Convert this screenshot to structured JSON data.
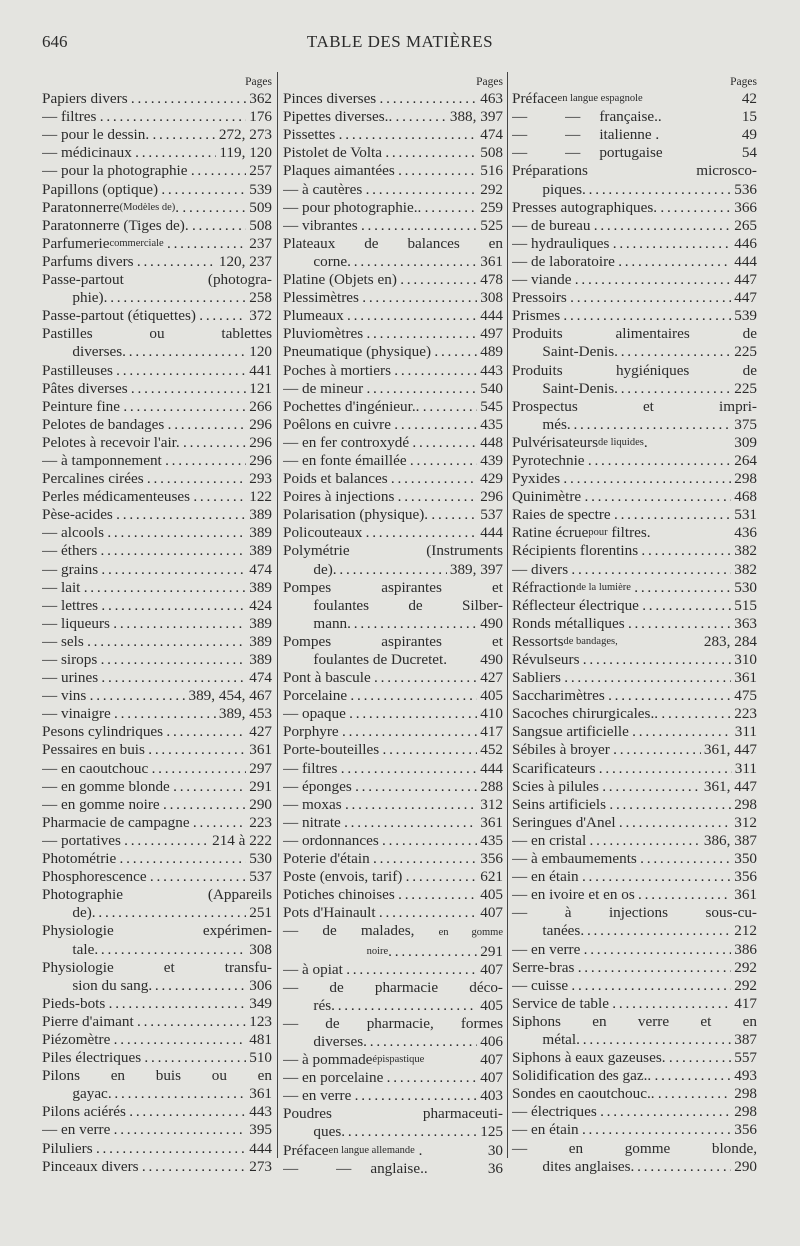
{
  "header": {
    "page_number": "646",
    "title": "TABLE DES MATIÈRES"
  },
  "pages_label": "Pages",
  "columns": [
    [
      {
        "t": "Papiers divers",
        "p": "362"
      },
      {
        "t": "— filtres",
        "p": "176"
      },
      {
        "t": "— pour le dessin.",
        "p": "272, 273"
      },
      {
        "t": "— médicinaux",
        "p": "119, 120"
      },
      {
        "t": "— pour la photographie",
        "p": "257"
      },
      {
        "t": "Papillons (optique)",
        "p": "539"
      },
      {
        "t": "Paratonnerre",
        "s": "(Modèles de)",
        "t2": ".",
        "p": "509"
      },
      {
        "t": "Paratonnerre (Tiges de).",
        "p": "508"
      },
      {
        "t": "Parfumerie",
        "s": "commerciale",
        "p": "237"
      },
      {
        "t": "Parfums divers",
        "p": "120, 237"
      },
      {
        "t": "Passe-partout (photogra-",
        "c": "phie)",
        "p": "258"
      },
      {
        "t": "Passe-partout (étiquettes)",
        "p": "372"
      },
      {
        "t": "Pastilles ou tablettes",
        "c": "diverses",
        "p": "120"
      },
      {
        "t": "Pastilleuses",
        "p": "441"
      },
      {
        "t": "Pâtes diverses",
        "p": "121"
      },
      {
        "t": "Peinture fine",
        "p": "266"
      },
      {
        "t": "Pelotes de bandages",
        "p": "296"
      },
      {
        "t": "Pelotes à recevoir l'air.",
        "p": "296"
      },
      {
        "t": "— à tamponnement",
        "p": "296"
      },
      {
        "t": "Percalines cirées",
        "p": "293"
      },
      {
        "t": "Perles médicamenteuses",
        "p": "122"
      },
      {
        "t": "Pèse-acides",
        "p": "389"
      },
      {
        "t": "— alcools",
        "p": "389"
      },
      {
        "t": "— éthers",
        "p": "389"
      },
      {
        "t": "— grains",
        "p": "474"
      },
      {
        "t": "— lait",
        "p": "389"
      },
      {
        "t": "— lettres",
        "p": "424"
      },
      {
        "t": "— liqueurs",
        "p": "389"
      },
      {
        "t": "— sels",
        "p": "389"
      },
      {
        "t": "— sirops",
        "p": "389"
      },
      {
        "t": "— urines",
        "p": "474"
      },
      {
        "t": "— vins",
        "p": "389, 454, 467"
      },
      {
        "t": "— vinaigre",
        "p": "389, 453"
      },
      {
        "t": "Pesons cylindriques",
        "p": "427"
      },
      {
        "t": "Pessaires en buis",
        "p": "361"
      },
      {
        "t": "— en caoutchouc",
        "p": "297"
      },
      {
        "t": "— en gomme blonde",
        "p": "291"
      },
      {
        "t": "— en gomme noire",
        "p": "290"
      },
      {
        "t": "Pharmacie de campagne",
        "p": "223"
      },
      {
        "t": "— portatives",
        "p": "214 à 222"
      },
      {
        "t": "Photométrie",
        "p": "530"
      },
      {
        "t": "Phosphorescence",
        "p": "537"
      },
      {
        "t": "Photographie (Appareils",
        "c": "de)",
        "p": "251"
      },
      {
        "t": "Physiologie expérimen-",
        "c": "tale",
        "p": "308"
      },
      {
        "t": "Physiologie et transfu-",
        "c": "sion du sang",
        "p": "306"
      },
      {
        "t": "Pieds-bots",
        "p": "349"
      },
      {
        "t": "Pierre d'aimant",
        "p": "123"
      },
      {
        "t": "Piézomètre",
        "p": "481"
      },
      {
        "t": "Piles électriques",
        "p": "510"
      },
      {
        "t": "Pilons en buis ou en",
        "c": "gayac",
        "p": "361"
      },
      {
        "t": "Pilons aciérés",
        "p": "443"
      },
      {
        "t": "— en verre",
        "p": "395"
      },
      {
        "t": "Piluliers",
        "p": "444"
      },
      {
        "t": "Pinceaux divers",
        "p": "273"
      }
    ],
    [
      {
        "t": "Pinces diverses",
        "p": "463"
      },
      {
        "t": "Pipettes diverses..",
        "p": "388, 397"
      },
      {
        "t": "Pissettes",
        "p": "474"
      },
      {
        "t": "Pistolet de Volta",
        "p": "508"
      },
      {
        "t": "Plaques aimantées",
        "p": "516"
      },
      {
        "t": "— à cautères",
        "p": "292"
      },
      {
        "t": "— pour photographie..",
        "p": "259"
      },
      {
        "t": "— vibrantes",
        "p": "525"
      },
      {
        "t": "Plateaux de balances en",
        "c": "corne",
        "p": "361"
      },
      {
        "t": "Platine (Objets en)",
        "p": "478"
      },
      {
        "t": "Plessimètres",
        "p": "308"
      },
      {
        "t": "Plumeaux",
        "p": "444"
      },
      {
        "t": "Pluviomètres",
        "p": "497"
      },
      {
        "t": "Pneumatique (physique)",
        "p": "489"
      },
      {
        "t": "Poches à mortiers",
        "p": "443"
      },
      {
        "t": "— de mineur",
        "p": "540"
      },
      {
        "t": "Pochettes d'ingénieur..",
        "p": "545"
      },
      {
        "t": "Poêlons en cuivre",
        "p": "435"
      },
      {
        "t": "— en fer controxydé",
        "p": "448"
      },
      {
        "t": "— en fonte émaillée",
        "p": "439"
      },
      {
        "t": "Poids et balances",
        "p": "429"
      },
      {
        "t": "Poires à injections",
        "p": "296"
      },
      {
        "t": "Polarisation (physique).",
        "p": "537"
      },
      {
        "t": "Policouteaux",
        "p": "444"
      },
      {
        "t": "Polymétrie (Instruments",
        "c": "de)",
        "p": "389, 397"
      },
      {
        "t": "Pompes aspirantes et",
        "m": "foulantes de Silber-",
        "c": "mann",
        "p": "490"
      },
      {
        "t": "Pompes aspirantes et",
        "c": "foulantes de Ducretet.",
        "p": "490",
        "nolead": true
      },
      {
        "t": "Pont à bascule",
        "p": "427"
      },
      {
        "t": "Porcelaine",
        "p": "405"
      },
      {
        "t": "— opaque",
        "p": "410"
      },
      {
        "t": "Porphyre",
        "p": "417"
      },
      {
        "t": "Porte-bouteilles",
        "p": "452"
      },
      {
        "t": "— filtres",
        "p": "444"
      },
      {
        "t": "— éponges",
        "p": "288"
      },
      {
        "t": "— moxas",
        "p": "312"
      },
      {
        "t": "— nitrate",
        "p": "361"
      },
      {
        "t": "— ordonnances",
        "p": "435"
      },
      {
        "t": "Poterie d'étain",
        "p": "356"
      },
      {
        "t": "Poste (envois, tarif)",
        "p": "621"
      },
      {
        "t": "Potiches chinoises",
        "p": "405"
      },
      {
        "t": "Pots d'Hainault",
        "p": "407"
      },
      {
        "t": "— de malades,",
        "ts": "en gomme",
        "c": "noire",
        "cs": true,
        "p": "291"
      },
      {
        "t": "— à opiat",
        "p": "407"
      },
      {
        "t": "— de pharmacie déco-",
        "c": "rés",
        "p": "405"
      },
      {
        "t": "— de pharmacie, formes",
        "c": "diverses",
        "p": "406"
      },
      {
        "t": "— à pommade",
        "s": "épispastique",
        "p": "407",
        "nolead": true
      },
      {
        "t": "— en porcelaine",
        "p": "407"
      },
      {
        "t": "— en verre",
        "p": "403"
      },
      {
        "t": "Poudres pharmaceuti-",
        "c": "ques",
        "p": "125"
      },
      {
        "t": "Préface",
        "s": "en langue allemande",
        "t2": " .",
        "p": "30",
        "nolead": true
      },
      {
        "t": "—          —     anglaise..",
        "p": "36",
        "nolead": true
      }
    ],
    [
      {
        "t": "Préface",
        "s": "en langue espagnole",
        "p": "42",
        "nolead": true
      },
      {
        "t": "—          —     française..",
        "p": "15",
        "nolead": true
      },
      {
        "t": "—          —     italienne .",
        "p": "49",
        "nolead": true
      },
      {
        "t": "—          —     portugaise",
        "p": "54",
        "nolead": true
      },
      {
        "t": "Préparations microsco-",
        "c": "piques",
        "p": "536"
      },
      {
        "t": "Presses autographiques.",
        "p": "366"
      },
      {
        "t": "— de bureau",
        "p": "265"
      },
      {
        "t": "— hydrauliques",
        "p": "446"
      },
      {
        "t": "— de laboratoire",
        "p": "444"
      },
      {
        "t": "— viande",
        "p": "447"
      },
      {
        "t": "Pressoirs",
        "p": "447"
      },
      {
        "t": "Prismes",
        "p": "539"
      },
      {
        "t": "Produits alimentaires de",
        "c": "Saint-Denis",
        "p": "225"
      },
      {
        "t": "Produits hygiéniques de",
        "c": "Saint-Denis",
        "p": "225"
      },
      {
        "t": "Prospectus et impri-",
        "c": "més",
        "p": "375"
      },
      {
        "t": "Pulvérisateurs",
        "s": "de liquides",
        "t2": ".",
        "p": "309",
        "nolead": true
      },
      {
        "t": "Pyrotechnie",
        "p": "264"
      },
      {
        "t": "Pyxides",
        "p": "298"
      },
      {
        "t": "Quinimètre",
        "p": "468"
      },
      {
        "t": "Raies de spectre",
        "p": "531"
      },
      {
        "t": "Ratine écrue",
        "s": "pour",
        "t2": " filtres.",
        "p": "436",
        "nolead": true
      },
      {
        "t": "Récipients florentins",
        "p": "382"
      },
      {
        "t": "— divers",
        "p": "382"
      },
      {
        "t": "Réfraction",
        "s": "de la lumière",
        "p": "530"
      },
      {
        "t": "Réflecteur électrique",
        "p": "515"
      },
      {
        "t": "Ronds métalliques",
        "p": "363"
      },
      {
        "t": "Ressorts",
        "s": "de bandages,",
        "p": "283, 284",
        "nolead": true
      },
      {
        "t": "Révulseurs",
        "p": "310"
      },
      {
        "t": "Sabliers",
        "p": "361"
      },
      {
        "t": "Saccharimètres",
        "p": "475"
      },
      {
        "t": "Sacoches chirurgicales..",
        "p": "223"
      },
      {
        "t": "Sangsue artificielle",
        "p": "311"
      },
      {
        "t": "Sébiles à broyer",
        "p": "361, 447"
      },
      {
        "t": "Scarificateurs",
        "p": "311"
      },
      {
        "t": "Scies à pilules",
        "p": "361, 447"
      },
      {
        "t": "Seins artificiels",
        "p": "298"
      },
      {
        "t": "Seringues d'Anel",
        "p": "312"
      },
      {
        "t": "— en cristal",
        "p": "386, 387"
      },
      {
        "t": "— à embaumements",
        "p": "350"
      },
      {
        "t": "— en étain",
        "p": "356"
      },
      {
        "t": "— en ivoire et en os",
        "p": "361"
      },
      {
        "t": "— à injections sous-cu-",
        "c": "tanées",
        "p": "212"
      },
      {
        "t": "— en verre",
        "p": "386"
      },
      {
        "t": "Serre-bras",
        "p": "292"
      },
      {
        "t": "— cuisse",
        "p": "292"
      },
      {
        "t": "Service de table",
        "p": "417"
      },
      {
        "t": "Siphons en verre et en",
        "c": "métal",
        "p": "387"
      },
      {
        "t": "Siphons à eaux gazeuses.",
        "p": "557"
      },
      {
        "t": "Solidification des gaz..",
        "p": "493"
      },
      {
        "t": "Sondes en caoutchouc..",
        "p": "298"
      },
      {
        "t": "— électriques",
        "p": "298"
      },
      {
        "t": "— en étain",
        "p": "356"
      },
      {
        "t": "— en gomme blonde,",
        "c": "dites anglaises",
        "p": "290"
      }
    ]
  ]
}
